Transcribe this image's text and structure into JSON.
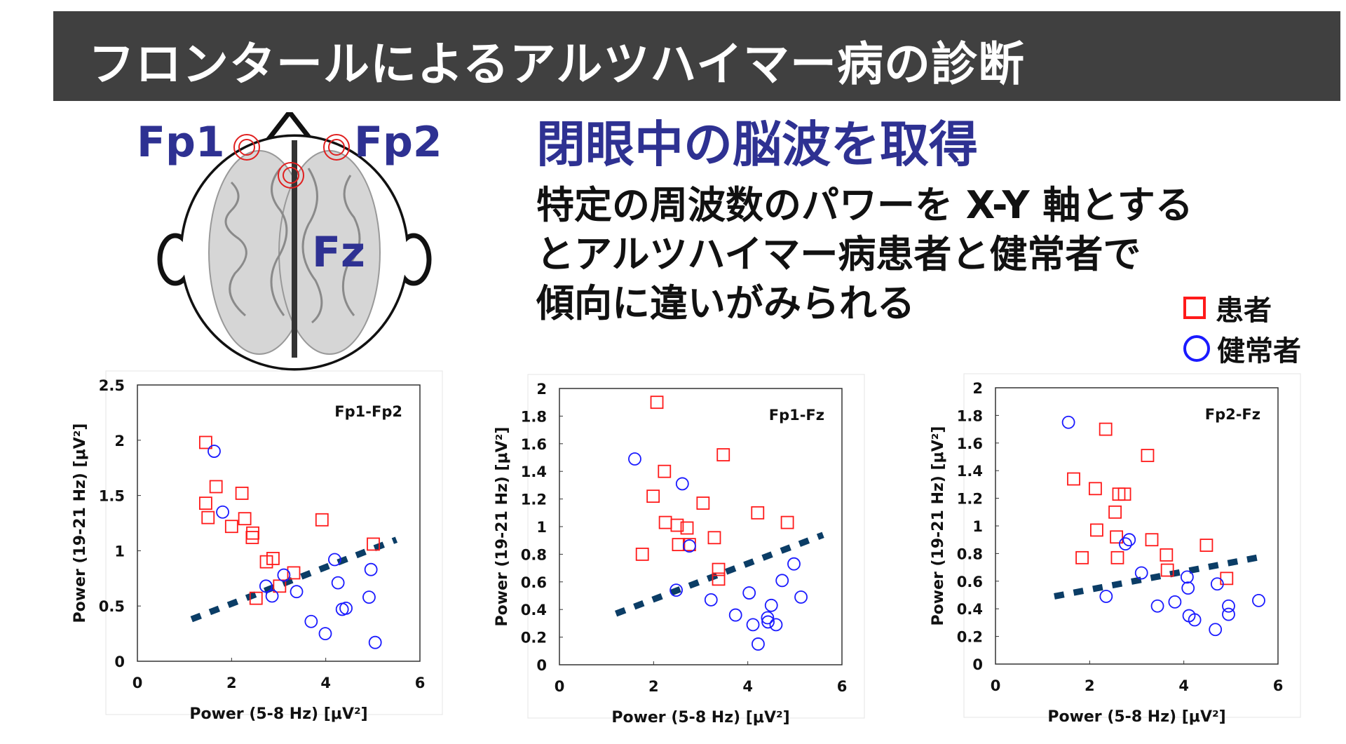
{
  "header": {
    "title": "フロンタールによるアルツハイマー病の診断"
  },
  "heading": "閉眼中の脳波を取得",
  "body_lines": [
    "特定の周波数のパワーを X-Y 軸とする",
    "とアルツハイマー病患者と健常者で",
    "傾向に違いがみられる"
  ],
  "legend": {
    "patient": "患者",
    "healthy": "健常者",
    "patient_color": "#ff1a1a",
    "healthy_color": "#1a1aff"
  },
  "electrodes": {
    "fp1": "Fp1",
    "fp2": "Fp2",
    "fz": "Fz"
  },
  "chart_data": [
    {
      "type": "scatter",
      "title": "Fp1-Fp2",
      "xlabel": "Power (5-8   Hz) [μV²]",
      "ylabel": "Power (19-21   Hz) [μV²]",
      "xlim": [
        0,
        6
      ],
      "ylim": [
        0,
        2.5
      ],
      "xticks": [
        0,
        2,
        4,
        6
      ],
      "yticks": [
        0,
        0.5,
        1,
        1.5,
        2,
        2.5
      ],
      "series": [
        {
          "name": "患者",
          "marker": "square",
          "points": [
            [
              1.45,
              1.98
            ],
            [
              1.67,
              1.58
            ],
            [
              2.22,
              1.52
            ],
            [
              1.45,
              1.43
            ],
            [
              1.5,
              1.3
            ],
            [
              2.0,
              1.22
            ],
            [
              2.28,
              1.29
            ],
            [
              2.45,
              1.16
            ],
            [
              2.44,
              1.12
            ],
            [
              3.92,
              1.28
            ],
            [
              5.01,
              1.06
            ],
            [
              2.74,
              0.9
            ],
            [
              2.88,
              0.93
            ],
            [
              3.32,
              0.8
            ],
            [
              3.02,
              0.68
            ],
            [
              2.52,
              0.57
            ]
          ]
        },
        {
          "name": "健常者",
          "marker": "circle",
          "points": [
            [
              1.63,
              1.9
            ],
            [
              1.81,
              1.35
            ],
            [
              2.73,
              0.68
            ],
            [
              3.11,
              0.78
            ],
            [
              2.86,
              0.59
            ],
            [
              3.38,
              0.63
            ],
            [
              4.19,
              0.92
            ],
            [
              4.26,
              0.71
            ],
            [
              4.35,
              0.47
            ],
            [
              4.43,
              0.48
            ],
            [
              3.69,
              0.36
            ],
            [
              3.99,
              0.25
            ],
            [
              4.96,
              0.83
            ],
            [
              4.92,
              0.58
            ],
            [
              5.05,
              0.17
            ]
          ]
        }
      ],
      "boundary": [
        [
          1.15,
          0.38
        ],
        [
          5.5,
          1.1
        ]
      ]
    },
    {
      "type": "scatter",
      "title": "Fp1-Fz",
      "xlabel": "Power (5-8   Hz) [μV²]",
      "ylabel": "Power (19-21   Hz) [μV²]",
      "xlim": [
        0,
        6
      ],
      "ylim": [
        0,
        2
      ],
      "xticks": [
        0,
        2,
        4,
        6
      ],
      "yticks": [
        0,
        0.2,
        0.4,
        0.6,
        0.8,
        1,
        1.2,
        1.4,
        1.6,
        1.8,
        2
      ],
      "series": [
        {
          "name": "患者",
          "marker": "square",
          "points": [
            [
              2.07,
              1.9
            ],
            [
              3.48,
              1.52
            ],
            [
              2.23,
              1.4
            ],
            [
              1.99,
              1.22
            ],
            [
              3.05,
              1.17
            ],
            [
              4.21,
              1.1
            ],
            [
              4.84,
              1.03
            ],
            [
              2.25,
              1.03
            ],
            [
              2.5,
              1.01
            ],
            [
              2.71,
              0.99
            ],
            [
              3.29,
              0.92
            ],
            [
              2.53,
              0.87
            ],
            [
              2.76,
              0.87
            ],
            [
              1.76,
              0.8
            ],
            [
              3.38,
              0.69
            ],
            [
              3.38,
              0.62
            ]
          ]
        },
        {
          "name": "健常者",
          "marker": "circle",
          "points": [
            [
              1.6,
              1.49
            ],
            [
              2.61,
              1.31
            ],
            [
              2.76,
              0.86
            ],
            [
              2.48,
              0.54
            ],
            [
              3.22,
              0.47
            ],
            [
              4.03,
              0.52
            ],
            [
              4.73,
              0.61
            ],
            [
              4.98,
              0.73
            ],
            [
              5.13,
              0.49
            ],
            [
              3.74,
              0.36
            ],
            [
              4.11,
              0.29
            ],
            [
              4.5,
              0.43
            ],
            [
              4.42,
              0.34
            ],
            [
              4.43,
              0.31
            ],
            [
              4.6,
              0.29
            ],
            [
              4.22,
              0.15
            ]
          ]
        }
      ],
      "boundary": [
        [
          1.2,
          0.37
        ],
        [
          5.6,
          0.94
        ]
      ]
    },
    {
      "type": "scatter",
      "title": "Fp2-Fz",
      "xlabel": "Power (5-8   Hz) [μV²]",
      "ylabel": "Power (19-21   Hz) [μV²]",
      "xlim": [
        0,
        6
      ],
      "ylim": [
        0,
        2
      ],
      "xticks": [
        0,
        2,
        4,
        6
      ],
      "yticks": [
        0,
        0.2,
        0.4,
        0.6,
        0.8,
        1,
        1.2,
        1.4,
        1.6,
        1.8,
        2
      ],
      "series": [
        {
          "name": "患者",
          "marker": "square",
          "points": [
            [
              2.34,
              1.7
            ],
            [
              3.23,
              1.51
            ],
            [
              1.66,
              1.34
            ],
            [
              2.12,
              1.27
            ],
            [
              2.62,
              1.23
            ],
            [
              2.74,
              1.23
            ],
            [
              2.54,
              1.1
            ],
            [
              2.15,
              0.97
            ],
            [
              2.57,
              0.92
            ],
            [
              3.32,
              0.9
            ],
            [
              1.84,
              0.77
            ],
            [
              2.59,
              0.77
            ],
            [
              3.63,
              0.79
            ],
            [
              4.48,
              0.86
            ],
            [
              3.65,
              0.68
            ],
            [
              4.91,
              0.62
            ]
          ]
        },
        {
          "name": "健常者",
          "marker": "circle",
          "points": [
            [
              1.55,
              1.75
            ],
            [
              2.76,
              0.87
            ],
            [
              2.84,
              0.9
            ],
            [
              3.1,
              0.66
            ],
            [
              2.35,
              0.49
            ],
            [
              3.44,
              0.42
            ],
            [
              3.81,
              0.45
            ],
            [
              4.07,
              0.63
            ],
            [
              4.09,
              0.55
            ],
            [
              4.11,
              0.35
            ],
            [
              4.23,
              0.32
            ],
            [
              4.71,
              0.58
            ],
            [
              4.67,
              0.25
            ],
            [
              4.95,
              0.42
            ],
            [
              4.95,
              0.36
            ],
            [
              5.59,
              0.46
            ]
          ]
        }
      ],
      "boundary": [
        [
          1.25,
          0.49
        ],
        [
          5.55,
          0.77
        ]
      ]
    }
  ]
}
